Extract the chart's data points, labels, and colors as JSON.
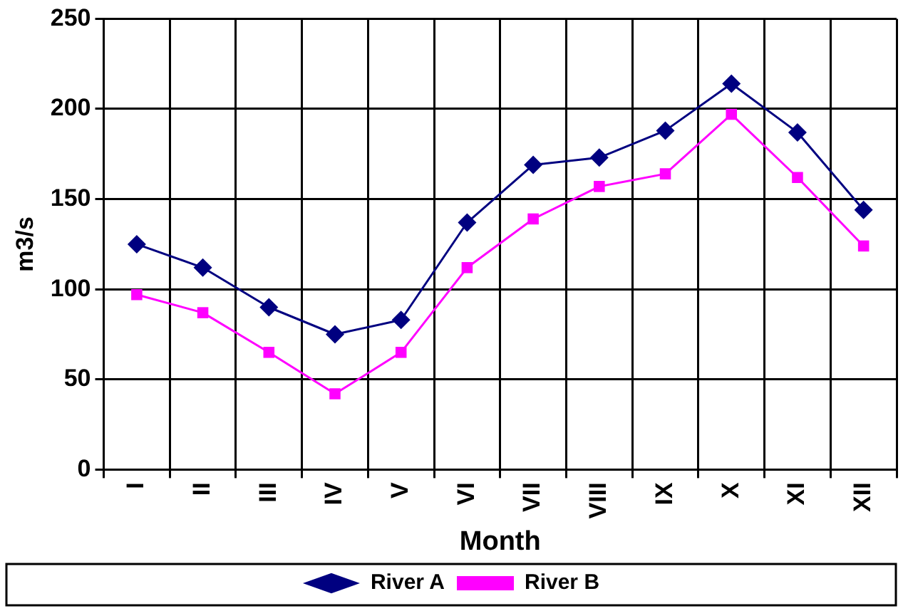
{
  "chart_data": {
    "type": "line",
    "xlabel": "Month",
    "ylabel": "m3/s",
    "categories": [
      "I",
      "II",
      "III",
      "IV",
      "V",
      "VI",
      "VII",
      "VIII",
      "IX",
      "X",
      "XI",
      "XII"
    ],
    "series": [
      {
        "name": "River A",
        "color": "#000080",
        "marker": "diamond",
        "values": [
          125,
          112,
          90,
          75,
          83,
          137,
          169,
          173,
          188,
          214,
          187,
          144
        ]
      },
      {
        "name": "River B",
        "color": "#ff00ff",
        "marker": "square",
        "values": [
          97,
          87,
          65,
          42,
          65,
          112,
          139,
          157,
          164,
          197,
          162,
          124
        ]
      }
    ],
    "ylim": [
      0,
      250
    ],
    "yticks": [
      0,
      50,
      100,
      150,
      200,
      250
    ],
    "grid": true,
    "legend": "bottom"
  }
}
